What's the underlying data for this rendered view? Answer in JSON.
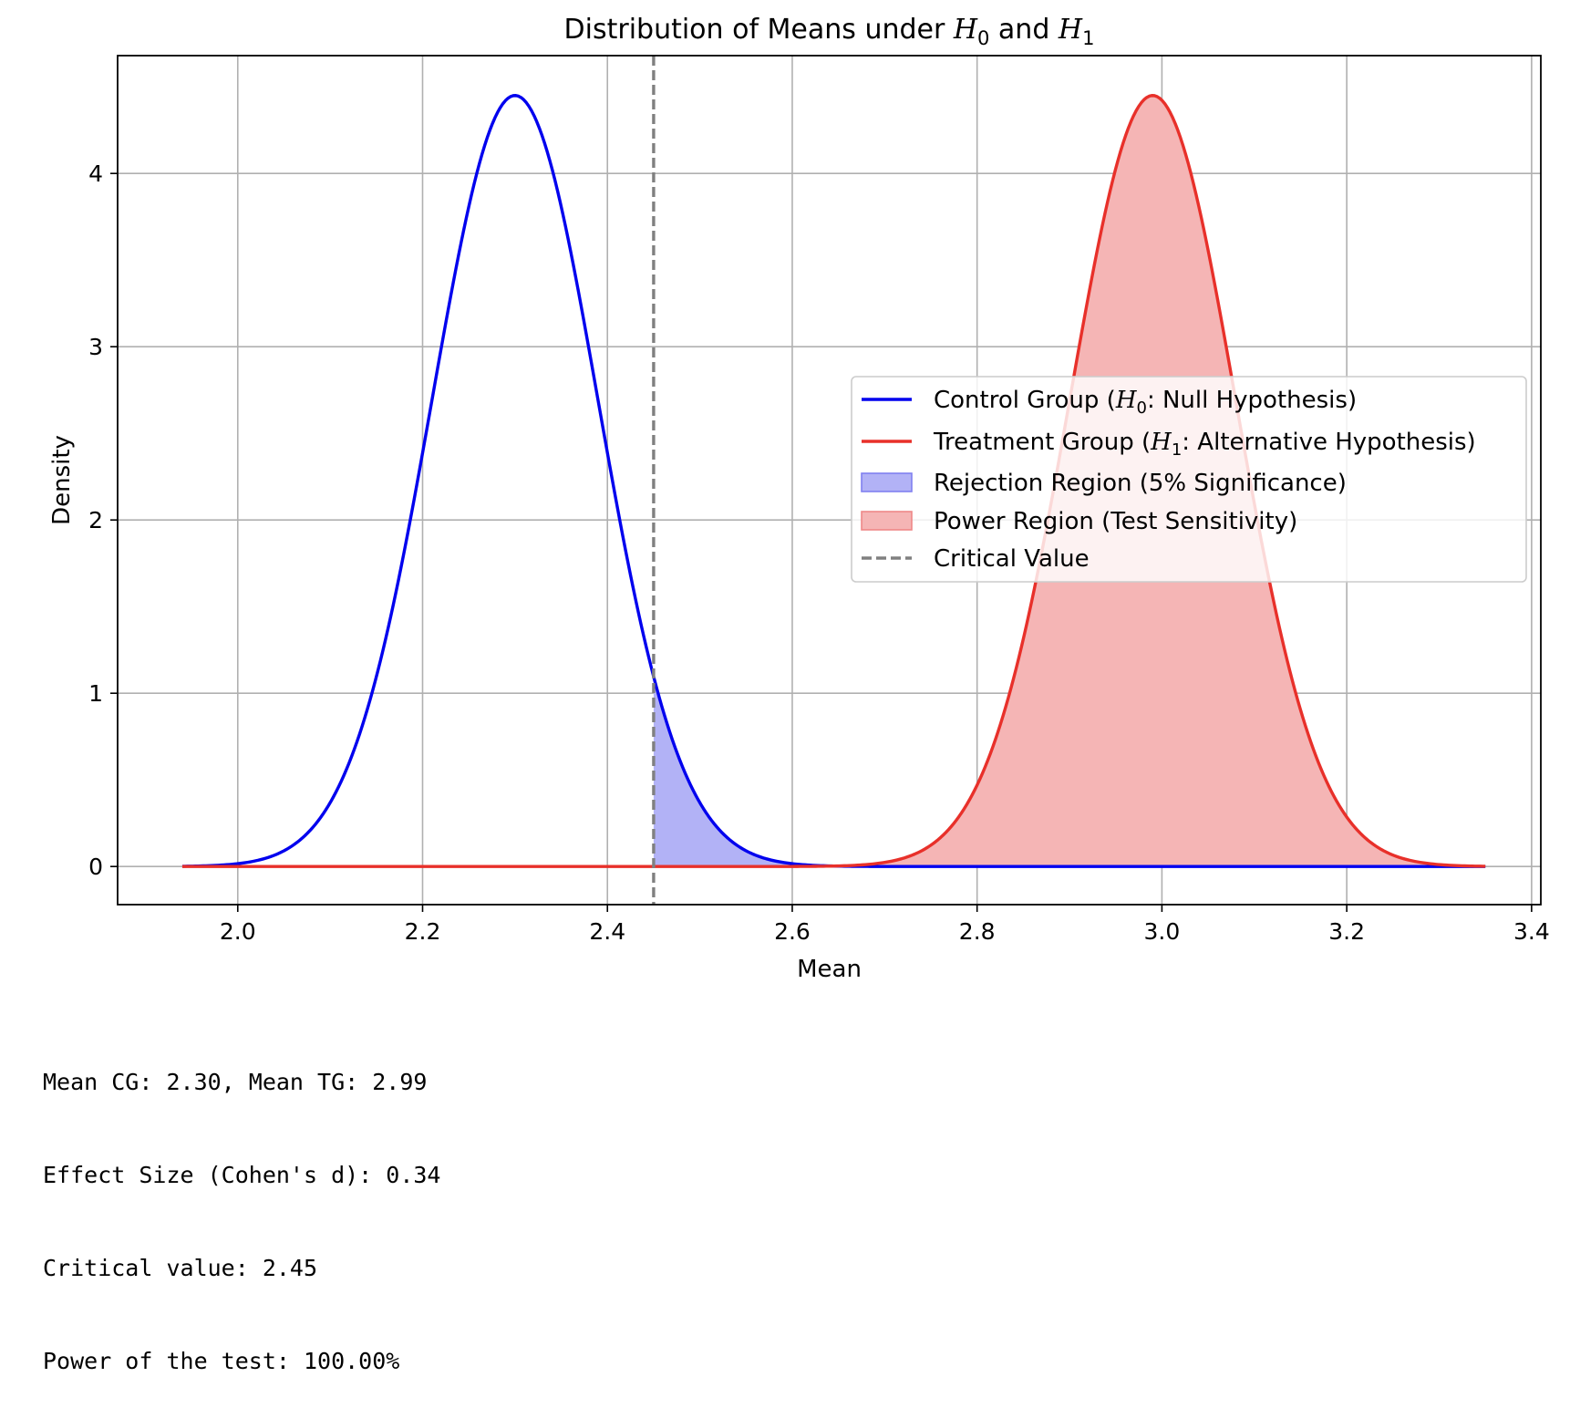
{
  "chart_data": {
    "type": "line",
    "title": {
      "prefix": "Distribution of Means under ",
      "h0_base": "H",
      "h0_sub": "0",
      "joiner": " and ",
      "h1_base": "H",
      "h1_sub": "1"
    },
    "xlabel": "Mean",
    "ylabel": "Density",
    "xlim": [
      1.87,
      3.41
    ],
    "ylim": [
      -0.22,
      4.68
    ],
    "x_ticks": [
      2.0,
      2.2,
      2.4,
      2.6,
      2.8,
      3.0,
      3.2,
      3.4
    ],
    "x_tick_labels": [
      "2.0",
      "2.2",
      "2.4",
      "2.6",
      "2.8",
      "3.0",
      "3.2",
      "3.4"
    ],
    "y_ticks": [
      0,
      1,
      2,
      3,
      4
    ],
    "y_tick_labels": [
      "0",
      "1",
      "2",
      "3",
      "4"
    ],
    "grid": true,
    "legend_position": "center-right",
    "x_range": [
      1.94,
      3.35
    ],
    "critical_value": 2.45,
    "series": [
      {
        "key": "control",
        "type": "normal-density",
        "mean": 2.3,
        "sd": 0.0896,
        "peak": 4.45,
        "color": "#0000ee"
      },
      {
        "key": "treatment",
        "type": "normal-density",
        "mean": 2.99,
        "sd": 0.0896,
        "peak": 4.45,
        "color": "#e8302a"
      }
    ],
    "shaded_regions": [
      {
        "key": "rejection",
        "under": "control",
        "from": 2.45,
        "to": 3.35,
        "color": "#b2b2f6",
        "edge": "#8080f0"
      },
      {
        "key": "power",
        "under": "treatment",
        "from": 2.45,
        "to": 3.35,
        "color": "#f5b5b5",
        "edge": "#ee8888"
      }
    ],
    "legend": [
      {
        "kind": "line",
        "color": "#0000ee",
        "pre": "Control Group (",
        "base": "H",
        "sub": "0",
        "post": ": Null Hypothesis)"
      },
      {
        "kind": "line",
        "color": "#e8302a",
        "pre": "Treatment Group (",
        "base": "H",
        "sub": "1",
        "post": ": Alternative Hypothesis)"
      },
      {
        "kind": "patch",
        "color": "#b2b2f6",
        "edge": "#8080f0",
        "pre": "Rejection Region (5% Significance)",
        "base": "",
        "sub": "",
        "post": ""
      },
      {
        "kind": "patch",
        "color": "#f5b5b5",
        "edge": "#ee8888",
        "pre": "Power Region (Test Sensitivity)",
        "base": "",
        "sub": "",
        "post": ""
      },
      {
        "kind": "dash",
        "color": "#808080",
        "pre": "Critical Value",
        "base": "",
        "sub": "",
        "post": ""
      }
    ]
  },
  "stats": [
    "Mean CG: 2.30, Mean TG: 2.99",
    "Effect Size (Cohen's d): 0.34",
    "Critical value: 2.45",
    "Power of the test: 100.00%"
  ]
}
